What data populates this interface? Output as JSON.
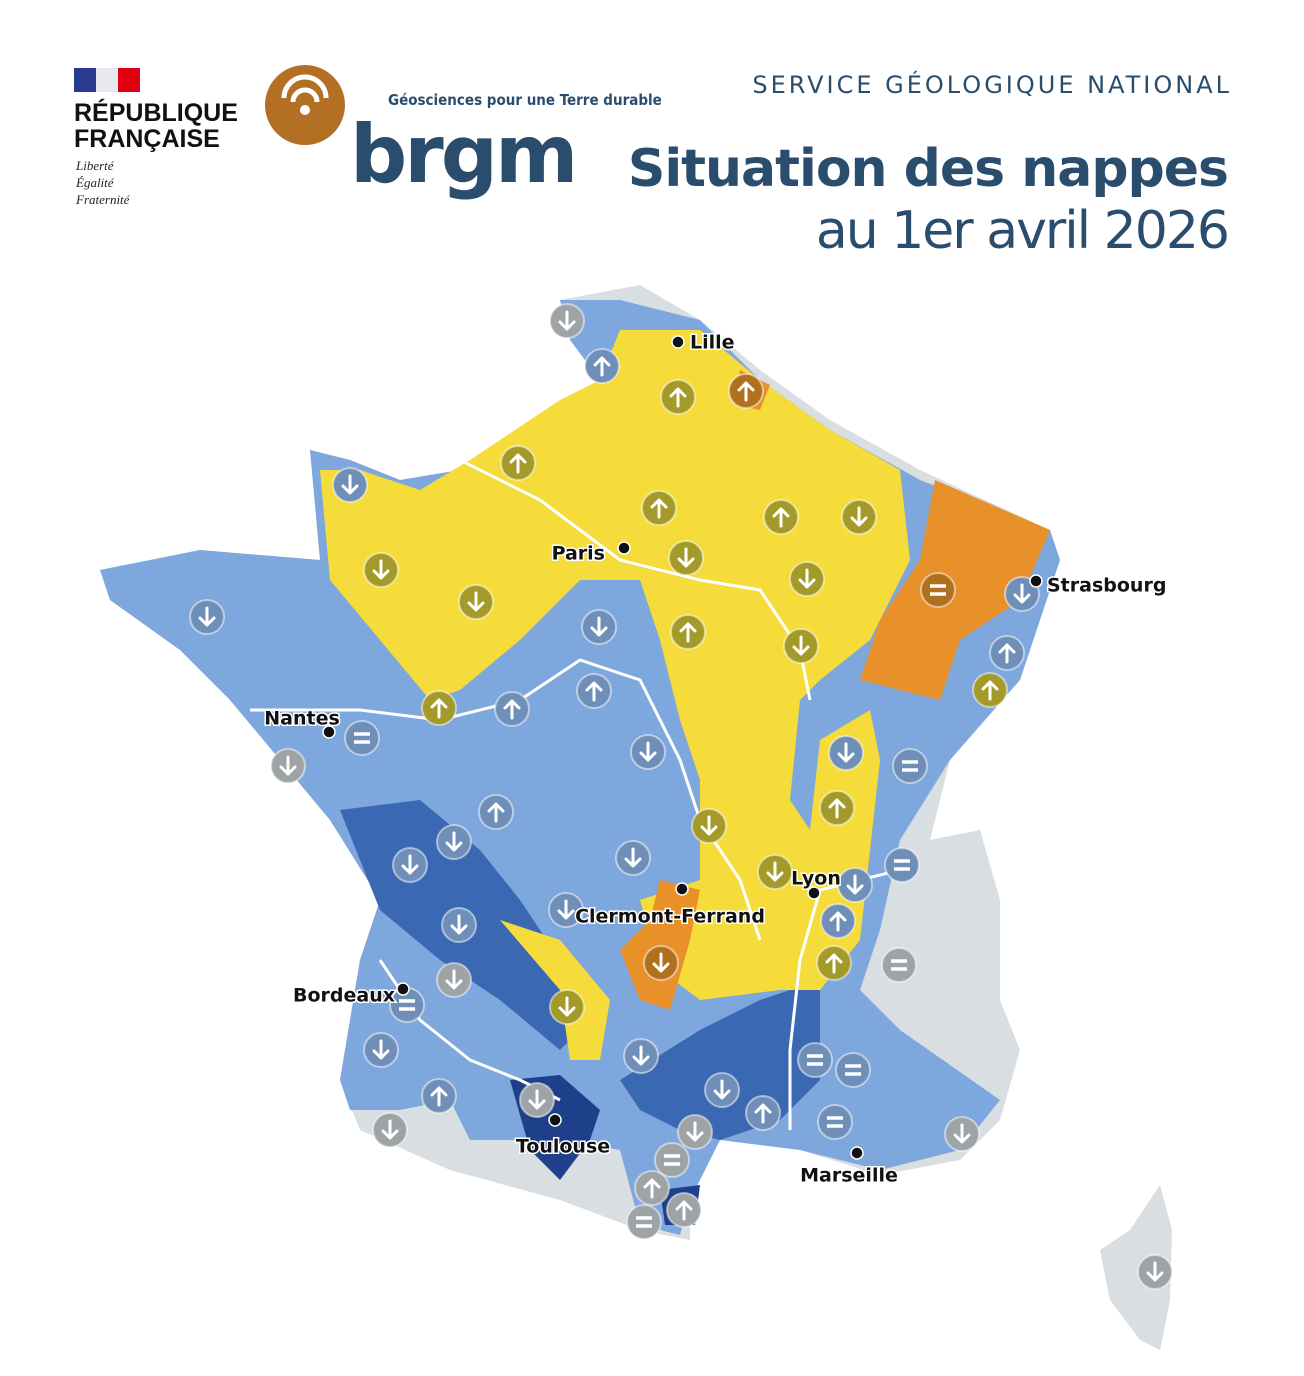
{
  "header": {
    "republique": {
      "line1": "RÉPUBLIQUE",
      "line2": "FRANÇAISE",
      "motto": [
        "Liberté",
        "Égalité",
        "Fraternité"
      ]
    },
    "brgm": {
      "tagline": "Géosciences pour une Terre durable",
      "name": "brgm"
    },
    "service": "SERVICE GÉOLOGIQUE NATIONAL",
    "title": "Situation des nappes",
    "subtitle": "au 1er avril 2026"
  },
  "map": {
    "cities": [
      "Lille",
      "Paris",
      "Strasbourg",
      "Nantes",
      "Lyon",
      "Clermont-Ferrand",
      "Bordeaux",
      "Toulouse",
      "Marseille"
    ]
  }
}
